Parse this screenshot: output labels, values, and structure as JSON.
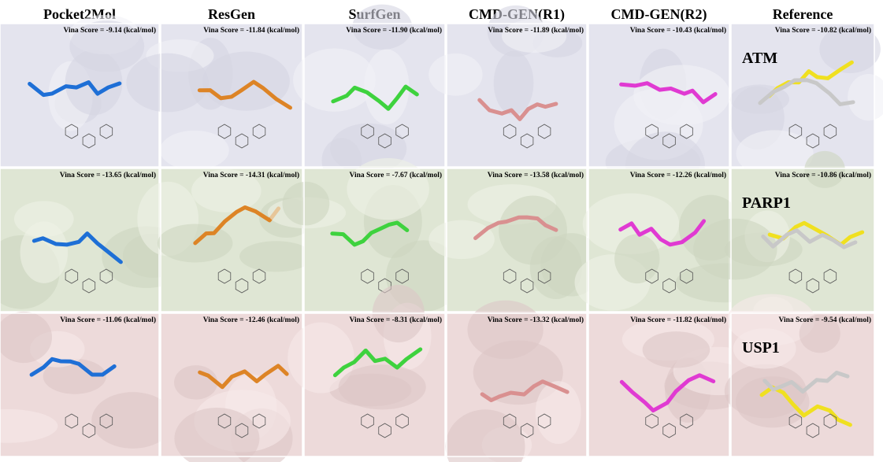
{
  "header": {
    "columns": [
      "Pocket2Mol",
      "ResGen",
      "SurfGen",
      "CMD-GEN(R1)",
      "CMD-GEN(R2)",
      "Reference"
    ]
  },
  "rows": [
    {
      "target": "ATM",
      "scores": [
        "Vina Score = -9.14 (kcal/mol)",
        "Vina Score = -11.84 (kcal/mol)",
        "Vina Score = -11.90 (kcal/mol)",
        "Vina Score = -11.89 (kcal/mol)",
        "Vina Score = -10.43 (kcal/mol)",
        "Vina Score = -10.82 (kcal/mol)"
      ]
    },
    {
      "target": "PARP1",
      "scores": [
        "Vina Score = -13.65 (kcal/mol)",
        "Vina Score = -14.31 (kcal/mol)",
        "Vina Score = -7.67 (kcal/mol)",
        "Vina Score = -13.58 (kcal/mol)",
        "Vina Score = -12.26 (kcal/mol)",
        "Vina Score = -10.86 (kcal/mol)"
      ]
    },
    {
      "target": "USP1",
      "scores": [
        "Vina Score = -11.06 (kcal/mol)",
        "Vina Score = -12.46 (kcal/mol)",
        "Vina Score = -8.31 (kcal/mol)",
        "Vina Score = -13.32 (kcal/mol)",
        "Vina Score = -11.82 (kcal/mol)",
        "Vina Score = -9.54 (kcal/mol)"
      ]
    }
  ]
}
